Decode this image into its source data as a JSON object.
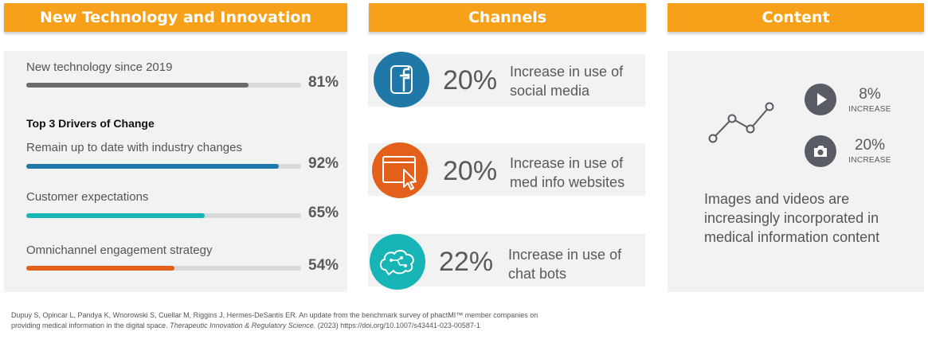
{
  "headers": {
    "tech": "New Technology and Innovation",
    "channels": "Channels",
    "content": "Content"
  },
  "tech": {
    "new_tech": {
      "label": "New technology since 2019",
      "value": "81%",
      "fraction": 0.81,
      "color": "#6b6b6b"
    },
    "drivers_title": "Top 3 Drivers of Change",
    "drivers": [
      {
        "label": "Remain up to date with industry changes",
        "value": "92%",
        "fraction": 0.92,
        "color": "#1f78a8"
      },
      {
        "label": "Customer expectations",
        "value": "65%",
        "fraction": 0.65,
        "color": "#17b5b5"
      },
      {
        "label": "Omnichannel engagement strategy",
        "value": "54%",
        "fraction": 0.54,
        "color": "#e2601a"
      }
    ]
  },
  "channels": [
    {
      "icon": "facebook-icon",
      "color": "#1f78a8",
      "pct": "20%",
      "line1": "Increase in use of",
      "line2": "social media"
    },
    {
      "icon": "website-cursor-icon",
      "color": "#e2601a",
      "pct": "20%",
      "line1": "Increase in use of",
      "line2": "med info websites"
    },
    {
      "icon": "chatbot-brain-icon",
      "color": "#17b5b5",
      "pct": "22%",
      "line1": "Increase in use of",
      "line2": "chat bots"
    }
  ],
  "content": {
    "video": {
      "icon": "play-icon",
      "pct": "8%",
      "label": "INCREASE"
    },
    "image": {
      "icon": "camera-icon",
      "pct": "20%",
      "label": "INCREASE"
    },
    "description": "Images and videos are increasingly incorporated in medical information content",
    "icon_color": "#595c64"
  },
  "citation": {
    "line1": "Dupuy S, Opincar L, Pandya K, Wnorowski S, Cuellar M, Riggins J, Hermes-DeSantis ER. An update from the benchmark survey of phactMI™ member companies on",
    "line2_prefix": "providing medical information in the digital space.",
    "journal": "Therapeutic Innovation & Regulatory Science.",
    "line2_suffix": "(2023) https://doi.org/10.1007/s43441-023-00587-1"
  }
}
